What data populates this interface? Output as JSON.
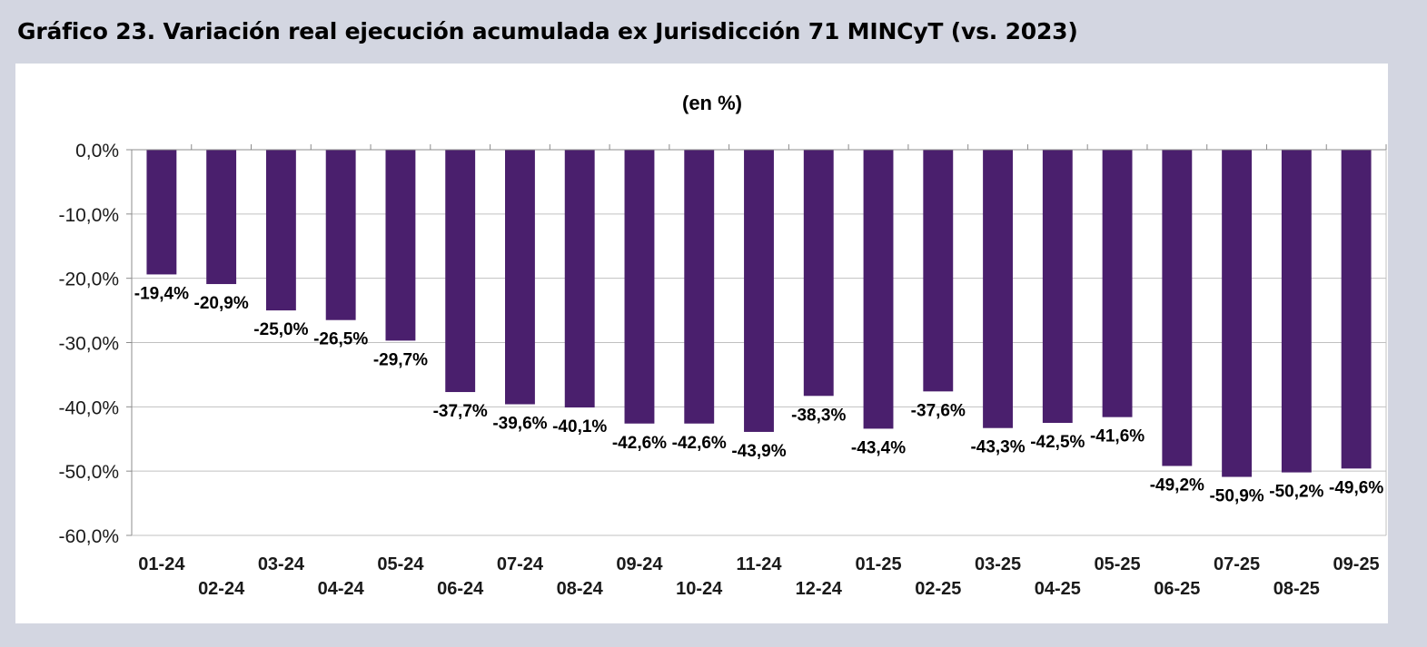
{
  "figure": {
    "title": "Gráfico 23. Variación real ejecución acumulada ex Jurisdicción 71 MINCyT (vs. 2023)"
  },
  "chart_data": {
    "type": "bar",
    "subtitle": "(en %)",
    "xlabel": "",
    "ylabel": "",
    "categories": [
      "01-24",
      "02-24",
      "03-24",
      "04-24",
      "05-24",
      "06-24",
      "07-24",
      "08-24",
      "09-24",
      "10-24",
      "11-24",
      "12-24",
      "01-25",
      "02-25",
      "03-25",
      "04-25",
      "05-25",
      "06-25",
      "07-25",
      "08-25",
      "09-25"
    ],
    "values": [
      -19.4,
      -20.9,
      -25.0,
      -26.5,
      -29.7,
      -37.7,
      -39.6,
      -40.1,
      -42.6,
      -42.6,
      -43.9,
      -38.3,
      -43.4,
      -37.6,
      -43.3,
      -42.5,
      -41.6,
      -49.2,
      -50.9,
      -50.2,
      -49.6
    ],
    "data_labels": [
      "-19,4%",
      "-20,9%",
      "-25,0%",
      "-26,5%",
      "-29,7%",
      "-37,7%",
      "-39,6%",
      "-40,1%",
      "-42,6%",
      "-42,6%",
      "-43,9%",
      "-38,3%",
      "-43,4%",
      "-37,6%",
      "-43,3%",
      "-42,5%",
      "-41,6%",
      "-49,2%",
      "-50,9%",
      "-50,2%",
      "-49,6%"
    ],
    "y_ticks": [
      0,
      -10,
      -20,
      -30,
      -40,
      -50,
      -60
    ],
    "y_tick_labels": [
      "0,0%",
      "-10,0%",
      "-20,0%",
      "-30,0%",
      "-40,0%",
      "-50,0%",
      "-60,0%"
    ],
    "ylim": [
      -60,
      0
    ],
    "grid": true,
    "legend": "none",
    "colors": {
      "bar": "#4a1f6d",
      "grid": "#c0c0c0",
      "axis": "#8c8c8c",
      "panel_background": "#ffffff",
      "page_background": "#d3d6e1"
    }
  }
}
